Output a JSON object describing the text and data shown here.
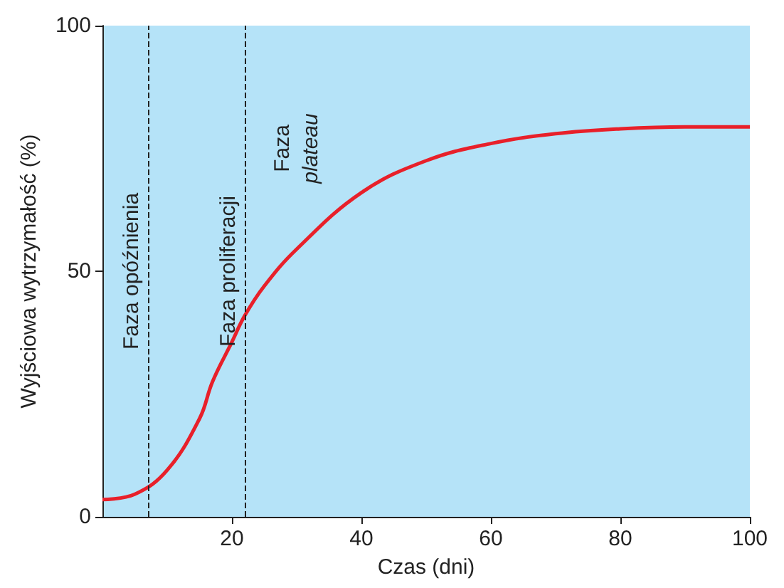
{
  "chart_data": {
    "type": "line",
    "xlabel": "Czas (dni)",
    "ylabel": "Wyjściowa wytrzymałość (%)",
    "x": [
      0,
      5,
      10,
      15,
      17,
      20,
      22,
      25,
      30,
      40,
      50,
      60,
      70,
      80,
      90,
      100
    ],
    "series": [
      {
        "color": "#e8202a",
        "values": [
          3.5,
          4.6,
          9.5,
          20,
          27.5,
          35.6,
          41,
          47,
          54.5,
          66,
          72.5,
          76,
          78,
          79,
          79.4,
          79.4
        ]
      }
    ],
    "xlim": [
      0,
      100
    ],
    "xticks": [
      20,
      40,
      60,
      80,
      100
    ],
    "ylim": [
      0,
      100
    ],
    "yticks": [
      0,
      50,
      100
    ],
    "ref_lines": [
      {
        "axis": "x",
        "value": 7,
        "label": "Faza opóźnienia",
        "line_style": "dashed"
      },
      {
        "axis": "x",
        "value": 22,
        "label": "Faza proliferacji",
        "line_style": "dashed"
      }
    ],
    "annotations": [
      "Faza plateau"
    ],
    "grid": false,
    "marker": "none",
    "line_style": "solid"
  }
}
